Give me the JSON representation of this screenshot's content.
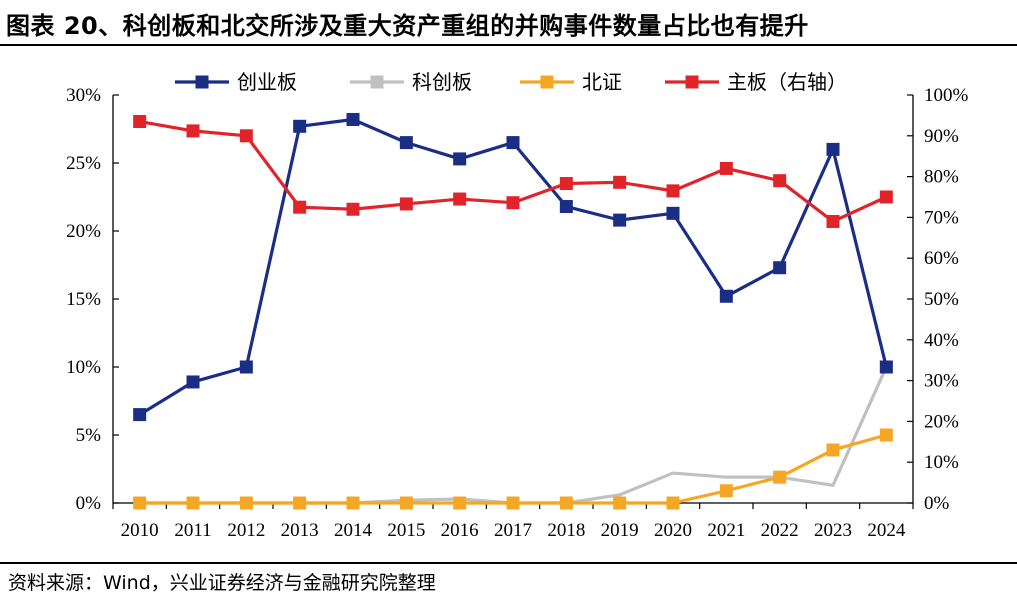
{
  "title": "图表 20、科创板和北交所涉及重大资产重组的并购事件数量占比也有提升",
  "source": "资料来源：Wind，兴业证券经济与金融研究院整理",
  "chart_data": {
    "type": "line",
    "title": "图表 20、科创板和北交所涉及重大资产重组的并购事件数量占比也有提升",
    "x": [
      "2010",
      "2011",
      "2012",
      "2013",
      "2014",
      "2015",
      "2016",
      "2017",
      "2018",
      "2019",
      "2020",
      "2021",
      "2022",
      "2023",
      "2024"
    ],
    "left_axis": {
      "ylim": [
        0,
        30
      ],
      "ticks": [
        0,
        5,
        10,
        15,
        20,
        25,
        30
      ],
      "tick_labels": [
        "0%",
        "5%",
        "10%",
        "15%",
        "20%",
        "25%",
        "30%"
      ]
    },
    "right_axis": {
      "ylim": [
        0,
        100
      ],
      "ticks": [
        0,
        10,
        20,
        30,
        40,
        50,
        60,
        70,
        80,
        90,
        100
      ],
      "tick_labels": [
        "0%",
        "10%",
        "20%",
        "30%",
        "40%",
        "50%",
        "60%",
        "70%",
        "80%",
        "90%",
        "100%"
      ]
    },
    "legend_position": "top",
    "grid": false,
    "series": [
      {
        "name": "创业板",
        "axis": "left",
        "color": "#1a2e86",
        "marker": "square",
        "markers": true,
        "values": [
          6.5,
          8.9,
          10.0,
          27.7,
          28.2,
          26.5,
          25.3,
          26.5,
          21.8,
          20.8,
          21.3,
          15.2,
          17.3,
          26.0,
          10.0
        ]
      },
      {
        "name": "科创板",
        "axis": "left",
        "color": "#c0c0c0",
        "marker": "square",
        "markers": false,
        "values": [
          0,
          0,
          0,
          0,
          0,
          0.2,
          0.3,
          0,
          0,
          0.6,
          2.2,
          1.9,
          1.9,
          1.3,
          10.0
        ]
      },
      {
        "name": "北证",
        "axis": "left",
        "color": "#f5a623",
        "marker": "square",
        "markers": true,
        "values": [
          0,
          0,
          0,
          0,
          0,
          0,
          0,
          0,
          0,
          0,
          0,
          0.9,
          1.9,
          3.9,
          5.0
        ]
      },
      {
        "name": "主板（右轴）",
        "axis": "right",
        "color": "#e0242a",
        "marker": "square",
        "markers": true,
        "values": [
          93.5,
          91.2,
          90.0,
          72.5,
          72.0,
          73.3,
          74.5,
          73.6,
          78.3,
          78.6,
          76.5,
          82.0,
          79.0,
          69.0,
          75.0
        ]
      }
    ]
  }
}
